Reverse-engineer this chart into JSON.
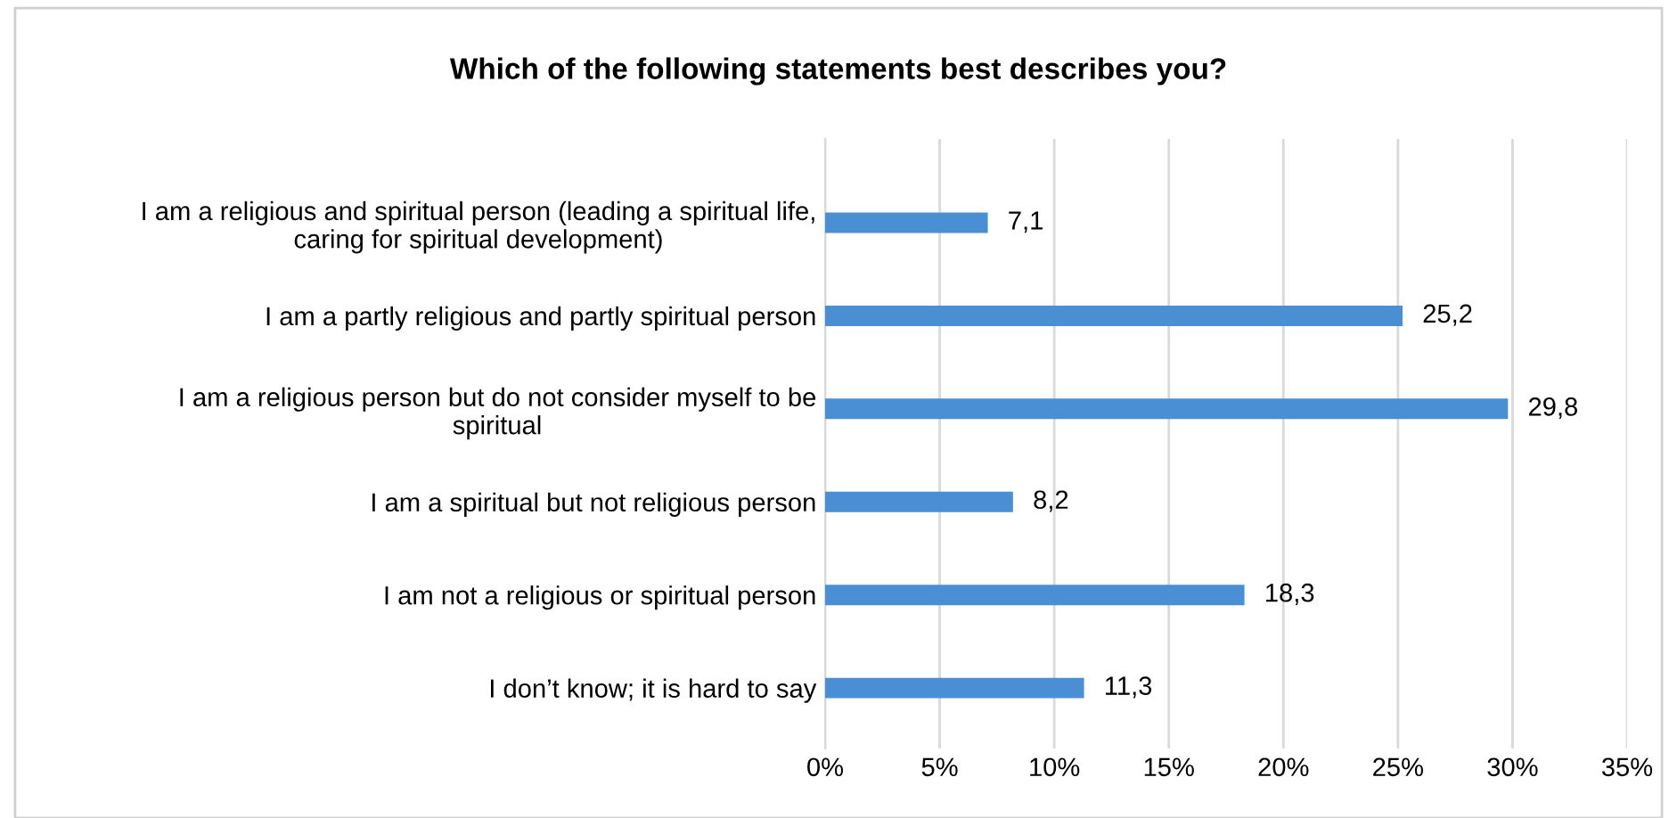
{
  "chart_data": {
    "type": "bar",
    "orientation": "horizontal",
    "title": "Which of the following statements best describes you?",
    "categories": [
      "I am a religious and spiritual person (leading a spiritual life,\ncaring for spiritual development)",
      "I am a partly religious and partly spiritual person",
      "I am a religious person but do not consider myself to be\nspiritual",
      "I am a spiritual but not religious person",
      "I am not a religious or spiritual person",
      "I don’t know; it is hard to say"
    ],
    "values": [
      7.1,
      25.2,
      29.8,
      8.2,
      18.3,
      11.3
    ],
    "value_labels": [
      "7,1",
      "25,2",
      "29,8",
      "8,2",
      "18,3",
      "11,3"
    ],
    "color": "#4a8fd4",
    "xlim": [
      0,
      35
    ],
    "xticks": [
      {
        "value": 0,
        "label": "0%"
      },
      {
        "value": 5,
        "label": "5%"
      },
      {
        "value": 10,
        "label": "10%"
      },
      {
        "value": 15,
        "label": "15%"
      },
      {
        "value": 20,
        "label": "20%"
      },
      {
        "value": 25,
        "label": "25%"
      },
      {
        "value": 30,
        "label": "30%"
      },
      {
        "value": 35,
        "label": "35%"
      }
    ],
    "grid": "x",
    "legend": false
  }
}
